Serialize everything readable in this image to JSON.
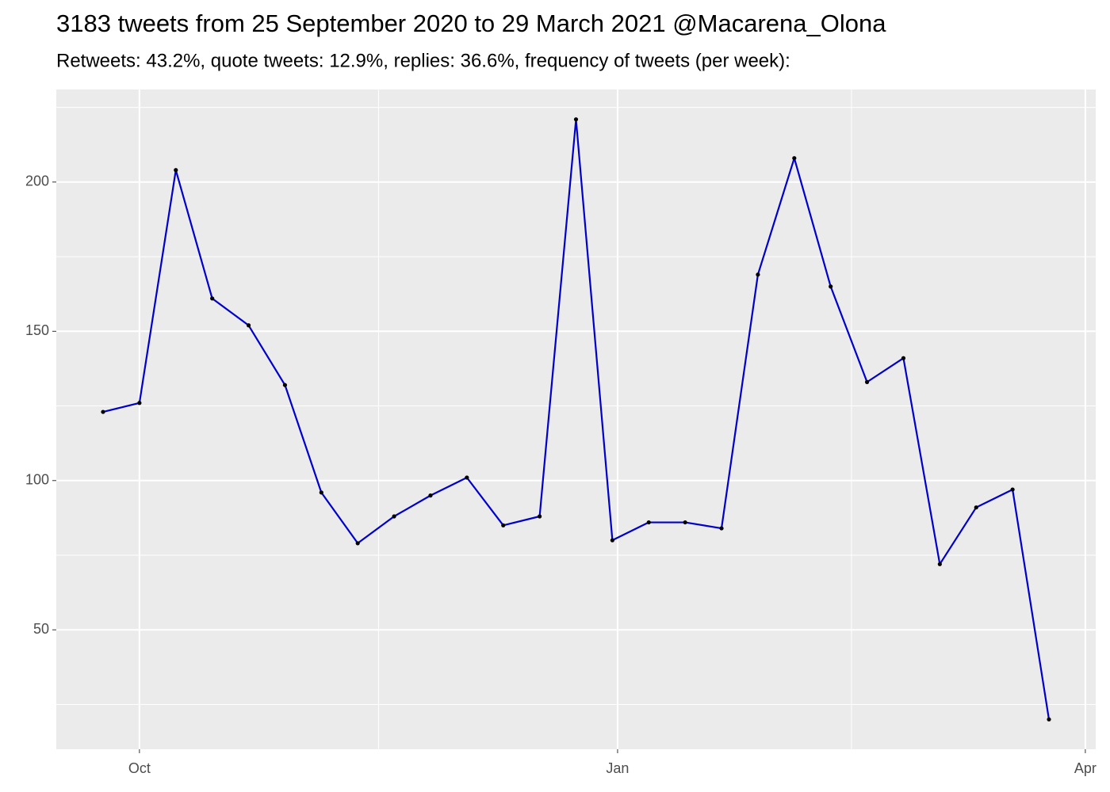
{
  "chart_data": {
    "type": "line",
    "title": "3183 tweets from 25 September 2020 to 29 March 2021 @Macarena_Olona",
    "subtitle": "Retweets: 43.2%, quote tweets: 12.9%, replies: 36.6%, frequency of tweets (per week):",
    "x": [
      "2020-09-24",
      "2020-10-01",
      "2020-10-08",
      "2020-10-15",
      "2020-10-22",
      "2020-10-29",
      "2020-11-05",
      "2020-11-12",
      "2020-11-19",
      "2020-11-26",
      "2020-12-03",
      "2020-12-10",
      "2020-12-17",
      "2020-12-24",
      "2020-12-31",
      "2021-01-07",
      "2021-01-14",
      "2021-01-21",
      "2021-01-28",
      "2021-02-04",
      "2021-02-11",
      "2021-02-18",
      "2021-02-25",
      "2021-03-04",
      "2021-03-11",
      "2021-03-18",
      "2021-03-25"
    ],
    "values": [
      123,
      126,
      204,
      161,
      152,
      132,
      96,
      79,
      88,
      95,
      101,
      85,
      88,
      221,
      80,
      86,
      86,
      84,
      169,
      208,
      165,
      133,
      141,
      72,
      91,
      97,
      20
    ],
    "color": "#0000cd",
    "point_color": "#000000",
    "xlim": [
      "2020-09-15",
      "2021-04-03"
    ],
    "xticks": [
      {
        "value": "2020-10-01",
        "label": "Oct"
      },
      {
        "value": "2021-01-01",
        "label": "Jan"
      },
      {
        "value": "2021-04-01",
        "label": "Apr"
      }
    ],
    "minor_xticks": [
      "2020-11-16",
      "2021-02-15"
    ],
    "ylim": [
      10,
      231
    ],
    "yticks": [
      50,
      100,
      150,
      200
    ],
    "minor_yticks": [
      25,
      75,
      125,
      175,
      225
    ],
    "grid": true
  }
}
